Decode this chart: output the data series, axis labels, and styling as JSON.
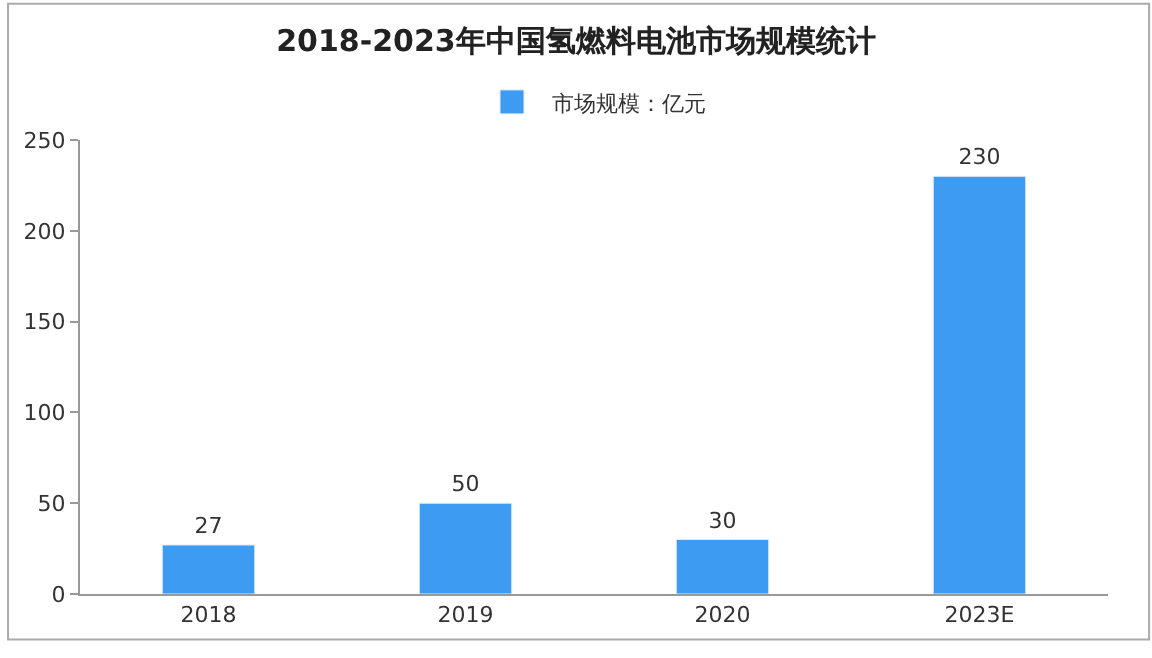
{
  "chart_data": {
    "type": "bar",
    "title": "2018-2023年中国氢燃料电池市场规模统计",
    "categories": [
      "2018",
      "2019",
      "2020",
      "2023E"
    ],
    "series": [
      {
        "name": "市场规模：亿元",
        "color": "#3d9bf2",
        "values": [
          27,
          50,
          30,
          230
        ]
      }
    ],
    "ylim": [
      0,
      250
    ],
    "yticks": [
      0,
      50,
      100,
      150,
      200,
      250
    ],
    "grid": false,
    "legend": "top",
    "data_labels": true
  }
}
